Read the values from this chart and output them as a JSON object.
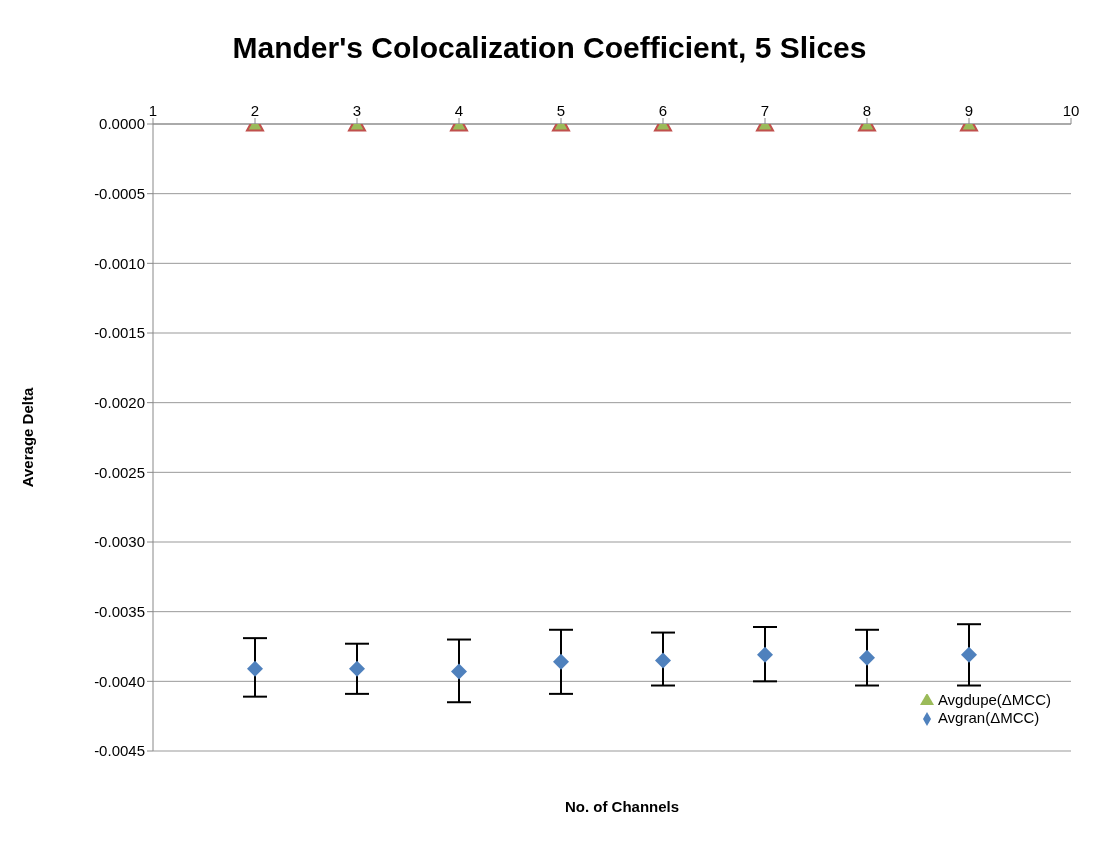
{
  "chart_data": {
    "type": "scatter",
    "title": "Mander's Colocalization Coefficient, 5 Slices",
    "xlabel": "No. of Channels",
    "ylabel": "Average Delta",
    "x": [
      2,
      3,
      4,
      5,
      6,
      7,
      8,
      9
    ],
    "series": [
      {
        "name": "Avgran(ΔMCC)",
        "color": "#4f81bd",
        "marker": "diamond",
        "values": [
          -0.00391,
          -0.00391,
          -0.00393,
          -0.00386,
          -0.00385,
          -0.00381,
          -0.00383,
          -0.00381
        ],
        "errors": [
          [
            -0.00411,
            -0.00369
          ],
          [
            -0.00409,
            -0.00373
          ],
          [
            -0.00415,
            -0.0037
          ],
          [
            -0.00409,
            -0.00363
          ],
          [
            -0.00403,
            -0.00365
          ],
          [
            -0.004,
            -0.00361
          ],
          [
            -0.00403,
            -0.00363
          ],
          [
            -0.00403,
            -0.00359
          ]
        ]
      },
      {
        "name": "Avgdupe(ΔMCC)",
        "color": "#9bbb59",
        "marker": "triangle",
        "values": [
          0,
          0,
          0,
          0,
          0,
          0,
          0,
          0
        ]
      }
    ],
    "xlim": [
      1,
      10
    ],
    "xticks": [
      1,
      2,
      3,
      4,
      5,
      6,
      7,
      8,
      9,
      10
    ],
    "ylim": [
      -0.0045,
      0
    ],
    "yticks": [
      {
        "value": 0,
        "label": "0.0000"
      },
      -0.0005,
      {
        "value": -0.001,
        "label": "-0.0010"
      },
      -0.0015,
      {
        "value": -0.002,
        "label": "-0.0020"
      },
      -0.0025,
      {
        "value": -0.003,
        "label": "-0.0030"
      },
      -0.0035,
      {
        "value": -0.004,
        "label": "-0.0040"
      },
      -0.0045
    ],
    "grid": "y",
    "legend": "bottom right"
  }
}
